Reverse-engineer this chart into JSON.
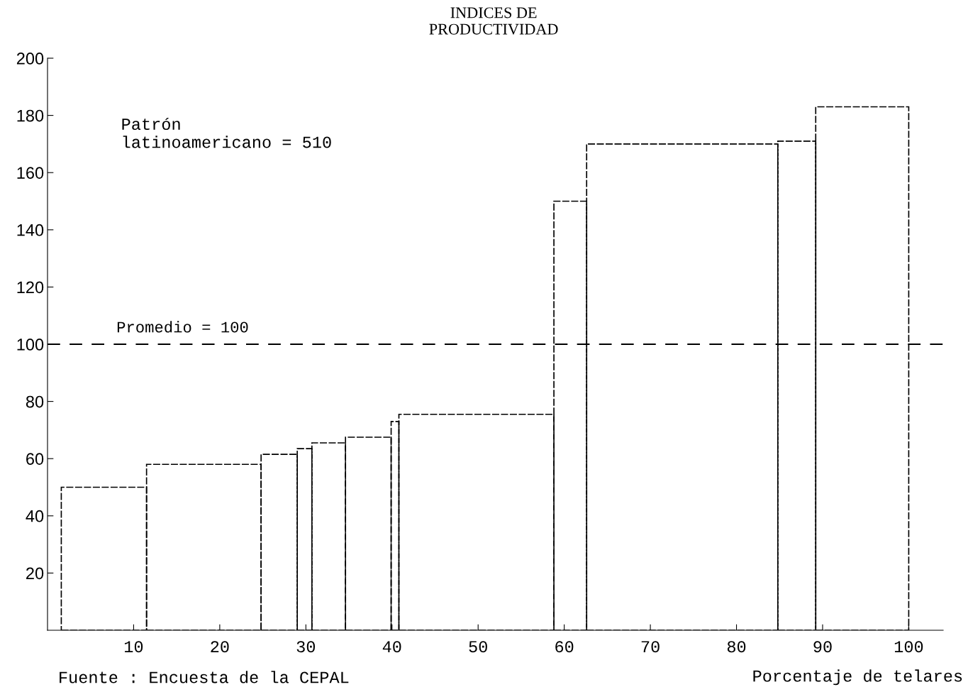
{
  "chart_data": {
    "type": "histogram",
    "title": "INDICES DE\nPRODUCTIVIDAD",
    "xlabel": "Porcentaje de telares",
    "bins": [
      1.6,
      11.5,
      24.8,
      29.0,
      30.7,
      34.6,
      39.9,
      40.8,
      58.8,
      62.6,
      84.8,
      89.2,
      100
    ],
    "values": [
      50,
      58,
      61.5,
      63.5,
      65.5,
      67.5,
      73,
      75.5,
      150,
      170,
      171,
      183
    ],
    "color": "#000000",
    "xlim": [
      0,
      104
    ],
    "xticks": [
      10,
      20,
      30,
      40,
      50,
      60,
      70,
      80,
      90,
      100
    ],
    "ylim": [
      0,
      200
    ],
    "yticks": [
      20,
      40,
      60,
      80,
      100,
      120,
      140,
      160,
      180,
      200
    ],
    "grid": false,
    "ref_lines": [
      {
        "axis": "y",
        "value": 100,
        "label": "Promedio = 100",
        "color": "#000000",
        "line_style": "dashed"
      }
    ],
    "annotations": [
      "Patrón\nlatinoamericano = 510",
      "Fuente : Encuesta de la CEPAL"
    ]
  }
}
